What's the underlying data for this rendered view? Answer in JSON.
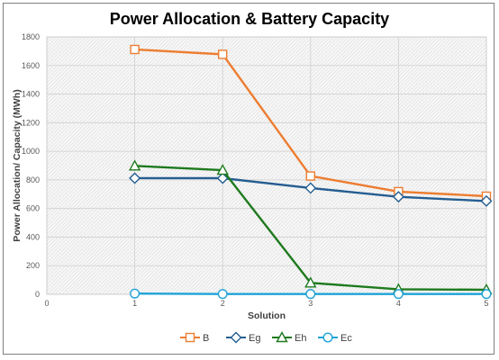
{
  "chart_data": {
    "type": "line",
    "title": "Power Allocation & Battery Capacity",
    "xlabel": "Solution",
    "ylabel": "Power Allocation/ Capacity (MWh)",
    "xlim": [
      0,
      5
    ],
    "ylim": [
      0,
      1800
    ],
    "x_ticks": [
      "0",
      "1",
      "2",
      "3",
      "4",
      "5"
    ],
    "y_ticks": [
      "0",
      "200",
      "400",
      "600",
      "800",
      "1000",
      "1200",
      "1400",
      "1600",
      "1800"
    ],
    "x": [
      1,
      2,
      3,
      4,
      5
    ],
    "grid": true,
    "legend_position": "bottom",
    "series": [
      {
        "name": "B",
        "values": [
          1712,
          1678,
          827,
          718,
          686
        ],
        "color": "#ed7d31",
        "marker": "square"
      },
      {
        "name": "Eg",
        "values": [
          812,
          812,
          743,
          682,
          652
        ],
        "color": "#255e91",
        "marker": "diamond"
      },
      {
        "name": "Eh",
        "values": [
          898,
          868,
          80,
          35,
          32
        ],
        "color": "#1e7a1e",
        "marker": "triangle"
      },
      {
        "name": "Ec",
        "values": [
          5,
          2,
          2,
          2,
          2
        ],
        "color": "#1fa3d8",
        "marker": "circle"
      }
    ]
  }
}
